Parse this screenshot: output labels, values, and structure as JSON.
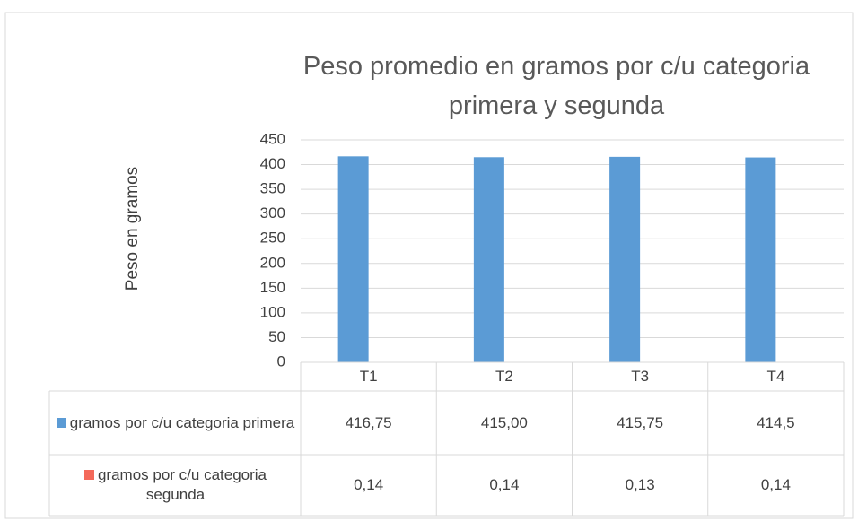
{
  "chart_data": {
    "type": "bar",
    "title": "Peso promedio en gramos por c/u categoria primera y segunda",
    "y_label": "Peso en gramos",
    "categories": [
      "T1",
      "T2",
      "T3",
      "T4"
    ],
    "series": [
      {
        "name": "gramos por c/u categoria primera",
        "color": "#5b9bd5",
        "values": [
          416.75,
          415.0,
          415.75,
          414.5
        ],
        "value_labels": [
          "416,75",
          "415,00",
          "415,75",
          "414,5"
        ]
      },
      {
        "name": "gramos por c/u categoria segunda",
        "color": "#f4695a",
        "values": [
          0.14,
          0.14,
          0.13,
          0.14
        ],
        "value_labels": [
          "0,14",
          "0,14",
          "0,13",
          "0,14"
        ]
      }
    ],
    "ylim": [
      0,
      450
    ],
    "yticks": [
      0,
      50,
      100,
      150,
      200,
      250,
      300,
      350,
      400,
      450
    ],
    "grid": true
  }
}
